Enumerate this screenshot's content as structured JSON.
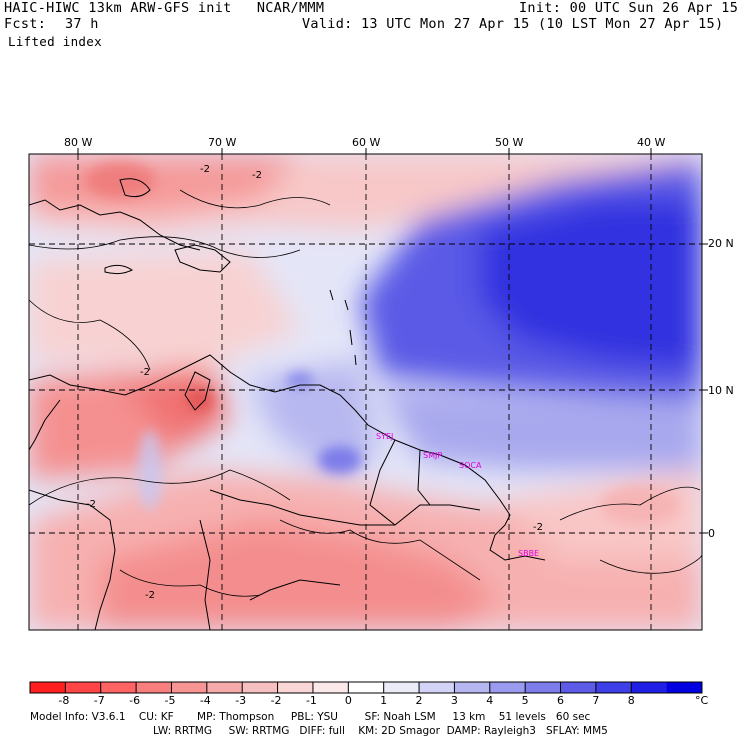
{
  "header": {
    "title_left": "HAIC-HIWC 13km ARW-GFS init   NCAR/MMM",
    "init": "Init: 00 UTC Sun 26 Apr 15",
    "fcst_label": "Fcst:",
    "fcst_value": "37 h",
    "valid": "Valid: 13 UTC Mon 27 Apr 15 (10 LST Mon 27 Apr 15)",
    "field": "Lifted index"
  },
  "map": {
    "lon_labels": [
      "80 W",
      "70 W",
      "60 W",
      "50 W",
      "40 W"
    ],
    "lat_labels": [
      "20 N",
      "10 N",
      "0"
    ],
    "contour_label": "-2",
    "stations": [
      "SYEJ",
      "SMJP",
      "SOCA",
      "SBBE"
    ]
  },
  "colorbar": {
    "ticks": [
      "-8",
      "-7",
      "-6",
      "-5",
      "-4",
      "-3",
      "-2",
      "-1",
      "0",
      "1",
      "2",
      "3",
      "4",
      "5",
      "6",
      "7",
      "8"
    ],
    "unit": "°C",
    "colors": [
      "#ff1f1f",
      "#ff4545",
      "#ff6464",
      "#f97e7e",
      "#f79595",
      "#f6aaaa",
      "#f7c0c0",
      "#fad6d6",
      "#fbe9ea",
      "#ffffff",
      "#ececf9",
      "#d3d3f6",
      "#b6b6f0",
      "#9a9aee",
      "#7c7ceb",
      "#5c5ce8",
      "#3f3fe7",
      "#1f1fe6",
      "#0000e0"
    ]
  },
  "footer": {
    "line1": "Model Info: V3.6.1    CU: KF       MP: Thompson     PBL: YSU        SF: Noah LSM     13 km    51 levels   60 sec",
    "line2": "LW: RRTMG     SW: RRTMG   DIFF: full    KM: 2D Smagor  DAMP: Rayleigh3   SFLAY: MM5"
  }
}
